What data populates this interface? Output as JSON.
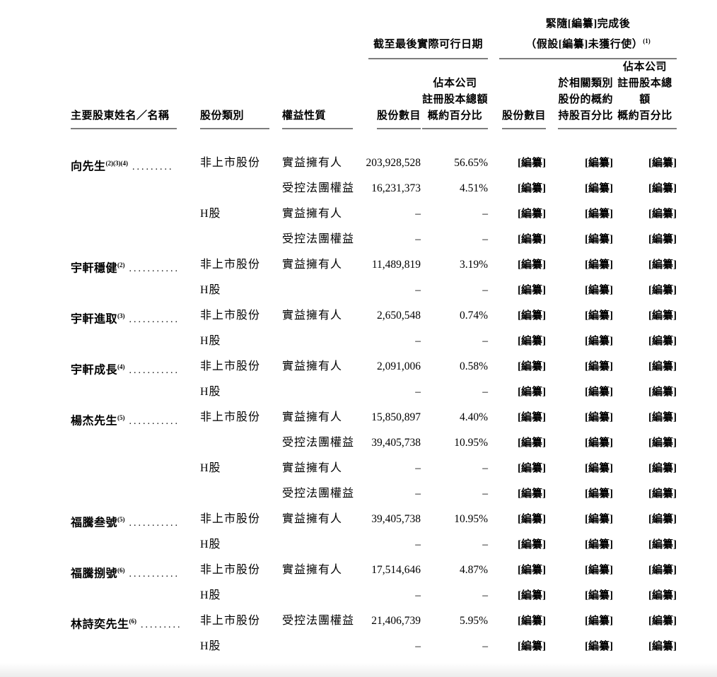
{
  "page": {
    "background": "#ffffff",
    "text_color": "#000000",
    "rule_color": "#7d7d7d"
  },
  "table": {
    "group_headers": {
      "latest_practicable": "截至最後實際可行日期",
      "post_completion_line1": "緊隨[編纂]完成後",
      "post_completion_line2": "（假設[編纂]未獲行使）",
      "post_completion_note": "(1)"
    },
    "columns": {
      "name": "主要股東姓名／名稱",
      "share_class": "股份類別",
      "interest_nature": "權益性質",
      "num_shares_1": "股份數目",
      "pct_1": [
        "佔本公司",
        "註冊股本總額",
        "概約百分比"
      ],
      "num_shares_2": "股份數目",
      "pct_2": [
        "於相關類別",
        "股份的概約",
        "持股百分比"
      ],
      "pct_3": [
        "佔本公司",
        "註冊股本總額",
        "概約百分比"
      ]
    },
    "redacted": "[編纂]",
    "rows": [
      {
        "name": "向先生",
        "sup": "(2)(3)(4)",
        "dots": ".........",
        "share_class": "非上市股份",
        "interest": "實益擁有人",
        "shares": "203,928,528",
        "pct": "56.65%"
      },
      {
        "name": "",
        "sup": "",
        "dots": "",
        "share_class": "",
        "interest": "受控法團權益",
        "shares": "16,231,373",
        "pct": "4.51%"
      },
      {
        "name": "",
        "sup": "",
        "dots": "",
        "share_class": "H股",
        "interest": "實益擁有人",
        "shares": "–",
        "pct": "–"
      },
      {
        "name": "",
        "sup": "",
        "dots": "",
        "share_class": "",
        "interest": "受控法團權益",
        "shares": "–",
        "pct": "–"
      },
      {
        "name": "宇軒穩健",
        "sup": "(2)",
        "dots": "...........",
        "share_class": "非上市股份",
        "interest": "實益擁有人",
        "shares": "11,489,819",
        "pct": "3.19%"
      },
      {
        "name": "",
        "sup": "",
        "dots": "",
        "share_class": "H股",
        "interest": "",
        "shares": "–",
        "pct": "–"
      },
      {
        "name": "宇軒進取",
        "sup": "(3)",
        "dots": "...........",
        "share_class": "非上市股份",
        "interest": "實益擁有人",
        "shares": "2,650,548",
        "pct": "0.74%"
      },
      {
        "name": "",
        "sup": "",
        "dots": "",
        "share_class": "H股",
        "interest": "",
        "shares": "–",
        "pct": "–"
      },
      {
        "name": "宇軒成長",
        "sup": "(4)",
        "dots": "...........",
        "share_class": "非上市股份",
        "interest": "實益擁有人",
        "shares": "2,091,006",
        "pct": "0.58%"
      },
      {
        "name": "",
        "sup": "",
        "dots": "",
        "share_class": "H股",
        "interest": "",
        "shares": "–",
        "pct": "–"
      },
      {
        "name": "楊杰先生",
        "sup": "(5)",
        "dots": "...........",
        "share_class": "非上市股份",
        "interest": "實益擁有人",
        "shares": "15,850,897",
        "pct": "4.40%"
      },
      {
        "name": "",
        "sup": "",
        "dots": "",
        "share_class": "",
        "interest": "受控法團權益",
        "shares": "39,405,738",
        "pct": "10.95%"
      },
      {
        "name": "",
        "sup": "",
        "dots": "",
        "share_class": "H股",
        "interest": "實益擁有人",
        "shares": "–",
        "pct": "–"
      },
      {
        "name": "",
        "sup": "",
        "dots": "",
        "share_class": "",
        "interest": "受控法團權益",
        "shares": "–",
        "pct": "–"
      },
      {
        "name": "福騰叁號",
        "sup": "(5)",
        "dots": "...........",
        "share_class": "非上市股份",
        "interest": "實益擁有人",
        "shares": "39,405,738",
        "pct": "10.95%"
      },
      {
        "name": "",
        "sup": "",
        "dots": "",
        "share_class": "H股",
        "interest": "",
        "shares": "–",
        "pct": "–"
      },
      {
        "name": "福騰捌號",
        "sup": "(6)",
        "dots": "...........",
        "share_class": "非上市股份",
        "interest": "實益擁有人",
        "shares": "17,514,646",
        "pct": "4.87%"
      },
      {
        "name": "",
        "sup": "",
        "dots": "",
        "share_class": "H股",
        "interest": "",
        "shares": "–",
        "pct": "–"
      },
      {
        "name": "林詩奕先生",
        "sup": "(6)",
        "dots": ".........",
        "share_class": "非上市股份",
        "interest": "受控法團權益",
        "shares": "21,406,739",
        "pct": "5.95%"
      },
      {
        "name": "",
        "sup": "",
        "dots": "",
        "share_class": "H股",
        "interest": "",
        "shares": "–",
        "pct": "–"
      }
    ]
  }
}
